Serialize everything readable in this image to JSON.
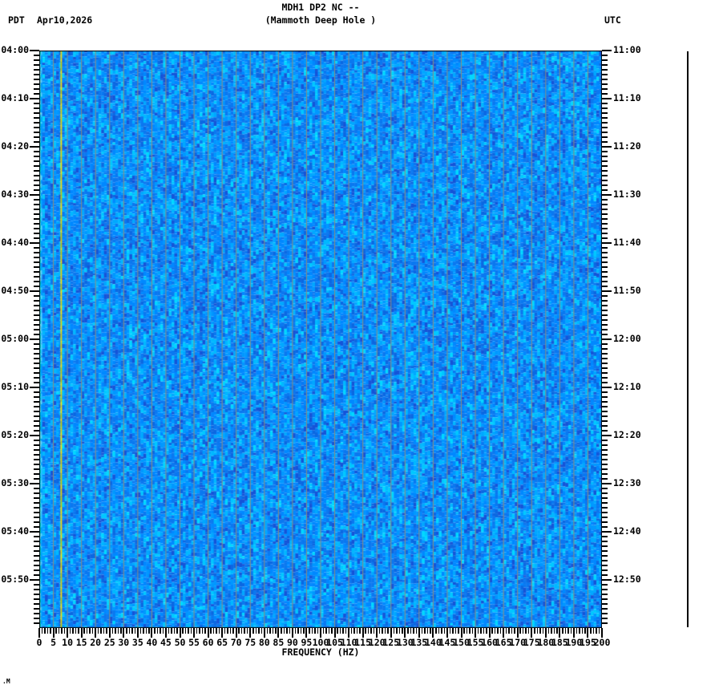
{
  "header": {
    "title": "MDH1 DP2 NC --",
    "subtitle": "(Mammoth Deep Hole )",
    "left_timezone": "PDT",
    "date": "Apr10,2026",
    "right_timezone": "UTC"
  },
  "corner_mark": ".M",
  "chart_data": {
    "type": "heatmap",
    "title": "MDH1 DP2 NC --",
    "subtitle": "(Mammoth Deep Hole )",
    "xlabel": "FREQUENCY (HZ)",
    "x_range_hz": [
      0,
      200
    ],
    "x_major_tick_step_hz": 5,
    "x_minor_tick_step_hz": 1,
    "x_tick_labels": [
      "0",
      "5",
      "10",
      "15",
      "20",
      "25",
      "30",
      "35",
      "40",
      "45",
      "50",
      "55",
      "60",
      "65",
      "70",
      "75",
      "80",
      "85",
      "90",
      "95",
      "100",
      "105",
      "110",
      "115",
      "120",
      "125",
      "130",
      "135",
      "140",
      "145",
      "150",
      "155",
      "160",
      "165",
      "170",
      "175",
      "180",
      "185",
      "190",
      "195",
      "200"
    ],
    "left_axis": {
      "timezone": "PDT",
      "labels": [
        "04:00",
        "04:10",
        "04:20",
        "04:30",
        "04:40",
        "04:50",
        "05:00",
        "05:10",
        "05:20",
        "05:30",
        "05:40",
        "05:50"
      ]
    },
    "right_axis": {
      "timezone": "UTC",
      "labels": [
        "11:00",
        "11:10",
        "11:20",
        "11:30",
        "11:40",
        "11:50",
        "12:00",
        "12:10",
        "12:20",
        "12:30",
        "12:40",
        "12:50"
      ]
    },
    "time_span_minutes": 120,
    "time_major_tick_minutes": 10,
    "time_minor_tick_minutes": 1,
    "grid": "vertical gridlines every 5 Hz",
    "legend": "none",
    "palette": {
      "background_cells": [
        [
          "#0a78f0",
          6
        ],
        [
          "#0088ff",
          5
        ],
        [
          "#0098ff",
          4
        ],
        [
          "#00a8ff",
          3
        ],
        [
          "#0b68e2",
          3
        ],
        [
          "#00b8ff",
          2
        ],
        [
          "#1554d8",
          1.5
        ],
        [
          "#00c8ff",
          1.5
        ],
        [
          "#00d8ff",
          0.6
        ]
      ],
      "left_edge_band_colors": [
        "#00ffd8",
        "#00e8ff",
        "#66ffe0",
        "#00f0c0",
        "#a0ffef"
      ],
      "left_edge_band2_colors": [
        "#2fc0ff",
        "#00aaff",
        "#55d0ff",
        "#0098ff"
      ],
      "event_line_colors": [
        "#ffe600",
        "#e8d400",
        "#ffdd00",
        "#cfcc00"
      ],
      "gridline_color": "rgba(150,140,115,0.95)"
    },
    "features": {
      "low_freq_bright_band_hz": [
        0,
        1
      ],
      "persistent_tone_hz": 7.8,
      "gridlines_every_hz": 5,
      "description": "Two-hour seismic spectrogram, mostly uniform blue broadband noise; bright cyan band at 0-1 Hz and a persistent yellow spectral line near 7.8 Hz."
    }
  }
}
